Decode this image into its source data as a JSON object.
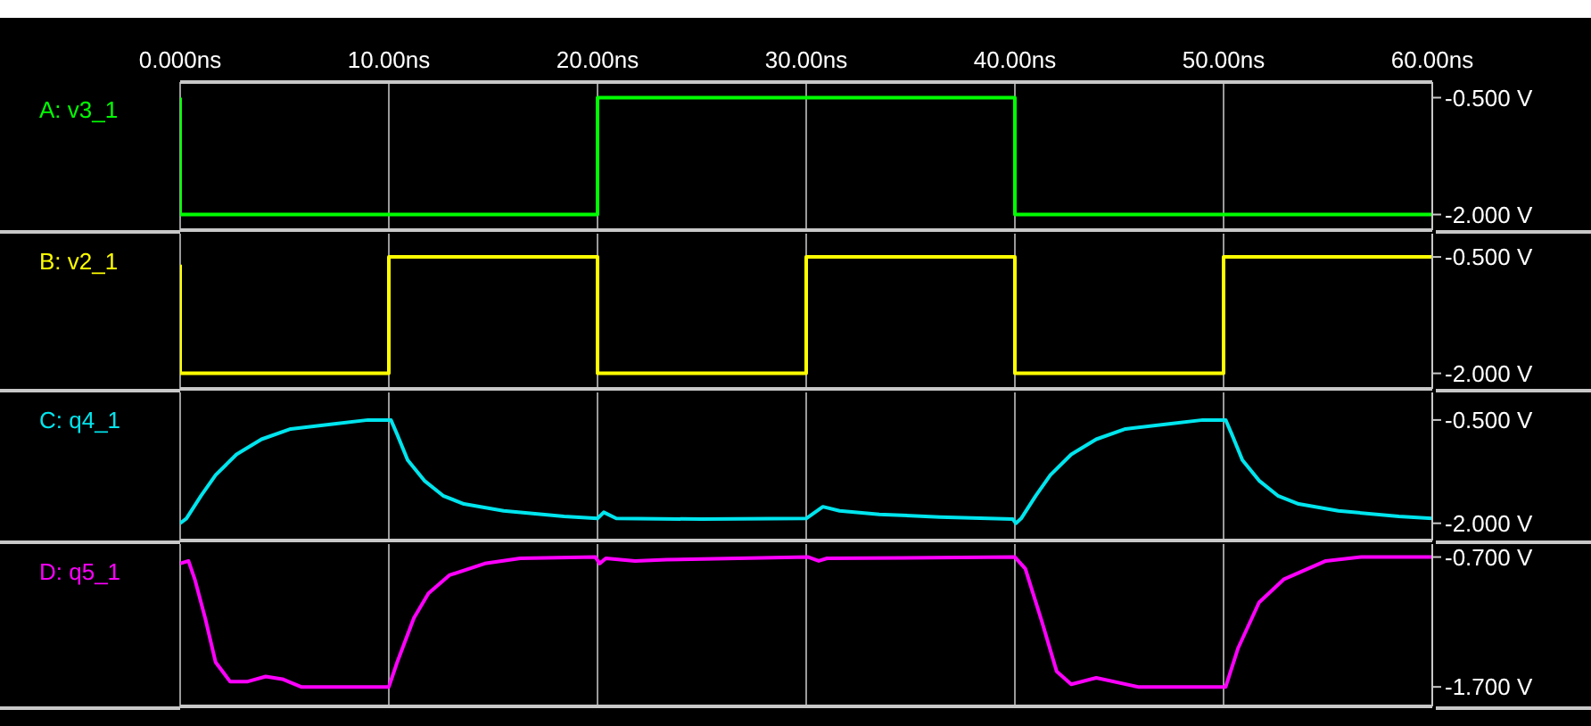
{
  "chart_data": [
    {
      "type": "line",
      "grid": "x",
      "xlim": [
        0,
        60
      ],
      "xticks": [
        {
          "value": 0,
          "label": "0.000ns"
        },
        {
          "value": 10,
          "label": "10.00ns"
        },
        {
          "value": 20,
          "label": "20.00ns"
        },
        {
          "value": 30,
          "label": "30.00ns"
        },
        {
          "value": 40,
          "label": "40.00ns"
        },
        {
          "value": 50,
          "label": "50.00ns"
        },
        {
          "value": 60,
          "label": "60.00ns"
        }
      ],
      "ylim": [
        -2.2,
        -0.3
      ],
      "yticks": [
        {
          "value": -0.5,
          "label": "-0.500 V"
        },
        {
          "value": -2,
          "label": "-2.000 V"
        }
      ],
      "series": [
        {
          "name": "A: v3_1",
          "color": "#00ff00",
          "x": [
            0,
            0,
            20,
            20,
            40,
            40,
            60
          ],
          "values": [
            -0.5,
            -2,
            -2,
            -0.5,
            -0.5,
            -2,
            -2
          ]
        }
      ]
    },
    {
      "type": "line",
      "grid": "x",
      "tick_labels": "y",
      "xlim": [
        0,
        60
      ],
      "xticks": [
        0,
        10,
        20,
        30,
        40,
        50,
        60
      ],
      "ylim": [
        -2.2,
        -0.2
      ],
      "yticks": [
        {
          "value": -0.5,
          "label": "-0.500 V"
        },
        {
          "value": -2,
          "label": "-2.000 V"
        }
      ],
      "series": [
        {
          "name": "B: v2_1",
          "color": "#ffff00",
          "x": [
            0,
            0,
            10,
            10,
            20,
            20,
            30,
            30,
            40,
            40,
            50,
            50,
            60
          ],
          "values": [
            -0.6,
            -2,
            -2,
            -0.5,
            -0.5,
            -2,
            -2,
            -0.5,
            -0.5,
            -2,
            -2,
            -0.5,
            -0.5
          ]
        }
      ]
    },
    {
      "type": "line",
      "grid": "x",
      "tick_labels": "y",
      "xlim": [
        0,
        60
      ],
      "xticks": [
        0,
        10,
        20,
        30,
        40,
        50,
        60
      ],
      "ylim": [
        -2.25,
        -0.1
      ],
      "yticks": [
        {
          "value": -0.5,
          "label": "-0.500 V"
        },
        {
          "value": -2,
          "label": "-2.000 V"
        }
      ],
      "series": [
        {
          "name": "C: q4_1",
          "color": "#00e5ee",
          "x": [
            0,
            0.3,
            1,
            1.7,
            2.7,
            3.9,
            5.3,
            7.3,
            9,
            10.1,
            10.4,
            10.9,
            11.7,
            12.6,
            13.6,
            15.5,
            18.4,
            20,
            20.3,
            20.9,
            25,
            30,
            30.8,
            31.6,
            33.5,
            36.4,
            39.9,
            40.05,
            40.3,
            41,
            41.7,
            42.7,
            43.9,
            45.3,
            47.3,
            49,
            50.1,
            50.4,
            50.9,
            51.7,
            52.6,
            53.6,
            55.5,
            58.4,
            60
          ],
          "values": [
            -2,
            -1.93,
            -1.6,
            -1.3,
            -1,
            -0.78,
            -0.63,
            -0.56,
            -0.5,
            -0.5,
            -0.71,
            -1.08,
            -1.38,
            -1.6,
            -1.72,
            -1.82,
            -1.9,
            -1.93,
            -1.84,
            -1.93,
            -1.94,
            -1.93,
            -1.76,
            -1.82,
            -1.87,
            -1.91,
            -1.94,
            -2,
            -1.93,
            -1.6,
            -1.3,
            -1,
            -0.78,
            -0.63,
            -0.56,
            -0.5,
            -0.5,
            -0.71,
            -1.08,
            -1.38,
            -1.6,
            -1.72,
            -1.82,
            -1.9,
            -1.93
          ]
        }
      ]
    },
    {
      "type": "line",
      "grid": "x",
      "tick_labels": "y",
      "xlim": [
        0,
        60
      ],
      "xticks": [
        0,
        10,
        20,
        30,
        40,
        50,
        60
      ],
      "ylim": [
        -1.85,
        -0.6
      ],
      "yticks": [
        {
          "value": -0.7,
          "label": "-0.700 V"
        },
        {
          "value": -1.7,
          "label": "-1.700 V"
        }
      ],
      "series": [
        {
          "name": "D: q5_1",
          "color": "#ff00ff",
          "x": [
            0,
            0.4,
            0.7,
            1.2,
            1.7,
            2.4,
            3.2,
            4.1,
            4.9,
            5.8,
            10,
            10.4,
            11.2,
            11.9,
            12.9,
            14.6,
            16.3,
            19.9,
            20.1,
            20.4,
            21.8,
            23.3,
            30.1,
            30.6,
            31,
            40,
            40.5,
            41.3,
            42,
            42.7,
            43.9,
            45.9,
            50.1,
            50.7,
            51.7,
            52.9,
            54.9,
            56.6,
            60
          ],
          "values": [
            -0.75,
            -0.73,
            -0.87,
            -1.17,
            -1.51,
            -1.66,
            -1.66,
            -1.62,
            -1.64,
            -1.7,
            -1.7,
            -1.51,
            -1.17,
            -0.98,
            -0.84,
            -0.75,
            -0.71,
            -0.7,
            -0.75,
            -0.71,
            -0.73,
            -0.72,
            -0.7,
            -0.73,
            -0.71,
            -0.7,
            -0.79,
            -1.2,
            -1.58,
            -1.68,
            -1.63,
            -1.7,
            -1.7,
            -1.4,
            -1.05,
            -0.87,
            -0.73,
            -0.7,
            -0.7
          ]
        }
      ]
    }
  ]
}
